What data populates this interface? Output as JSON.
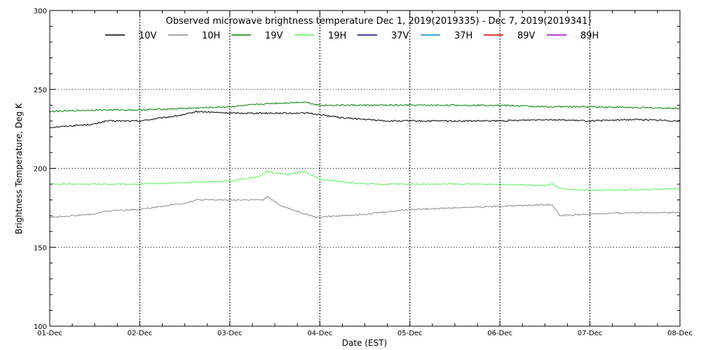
{
  "chart_data": {
    "type": "line",
    "title": "Observed microwave brightness temperature Dec  1, 2019(2019335) - Dec  7, 2019(2019341)",
    "xlabel": "Date (EST)",
    "ylabel": "Brightness Temperature, Deg K",
    "xlim": [
      "01-Dec",
      "08-Dec"
    ],
    "ylim": [
      100,
      300
    ],
    "x_ticks": [
      "01-Dec",
      "02-Dec",
      "03-Dec",
      "04-Dec",
      "05-Dec",
      "06-Dec",
      "07-Dec",
      "08-Dec"
    ],
    "y_ticks": [
      100,
      150,
      200,
      250,
      300
    ],
    "grid": true,
    "legend_position": "top",
    "legend": [
      {
        "name": "10V",
        "color": "#000000"
      },
      {
        "name": "10H",
        "color": "#8c8c8c"
      },
      {
        "name": "19V",
        "color": "#008000"
      },
      {
        "name": "19H",
        "color": "#5cf05c"
      },
      {
        "name": "37V",
        "color": "#000080"
      },
      {
        "name": "37H",
        "color": "#0088c8"
      },
      {
        "name": "89V",
        "color": "#d00000"
      },
      {
        "name": "89H",
        "color": "#a000c0"
      }
    ],
    "series": [
      {
        "name": "10V",
        "color": "#000000",
        "x": [
          "01-Dec",
          "01-Dec 12:00",
          "01-Dec 15:00",
          "02-Dec",
          "02-Dec 12:00",
          "02-Dec 15:00",
          "03-Dec",
          "03-Dec 12:00",
          "03-Dec 21:00",
          "04-Dec 06:00",
          "04-Dec 18:00",
          "05-Dec",
          "05-Dec 12:00",
          "06-Dec",
          "06-Dec 12:00",
          "07-Dec",
          "07-Dec 12:00",
          "08-Dec"
        ],
        "y": [
          226,
          228,
          230,
          230,
          234,
          236,
          235,
          235,
          235,
          232,
          230,
          230,
          230,
          230,
          231,
          230,
          231,
          230
        ]
      },
      {
        "name": "10H",
        "color": "#8c8c8c",
        "x": [
          "01-Dec",
          "01-Dec 12:00",
          "01-Dec 15:00",
          "02-Dec",
          "02-Dec 12:00",
          "02-Dec 15:00",
          "03-Dec",
          "03-Dec 09:00",
          "03-Dec 10:00",
          "03-Dec 14:00",
          "03-Dec 19:00",
          "03-Dec 23:00",
          "04-Dec 12:00",
          "05-Dec",
          "05-Dec 12:00",
          "06-Dec",
          "06-Dec 12:00",
          "06-Dec 14:00",
          "06-Dec 16:00",
          "07-Dec",
          "07-Dec 12:00",
          "08-Dec"
        ],
        "y": [
          169,
          171,
          173,
          174,
          178,
          180,
          180,
          180,
          182,
          176,
          172,
          169,
          171,
          174,
          175,
          176,
          177,
          177,
          170,
          171,
          172,
          172
        ]
      },
      {
        "name": "19V",
        "color": "#008000",
        "x": [
          "01-Dec",
          "01-Dec 12:00",
          "02-Dec",
          "02-Dec 12:00",
          "03-Dec",
          "03-Dec 10:00",
          "03-Dec 20:00",
          "04-Dec",
          "05-Dec",
          "06-Dec",
          "06-Dec 12:00",
          "07-Dec",
          "08-Dec"
        ],
        "y": [
          236,
          237,
          237,
          238,
          239,
          241,
          242,
          240,
          240,
          240,
          239,
          239,
          238
        ]
      },
      {
        "name": "19H",
        "color": "#5cf05c",
        "x": [
          "01-Dec",
          "01-Dec 12:00",
          "02-Dec",
          "02-Dec 12:00",
          "03-Dec",
          "03-Dec 08:00",
          "03-Dec 10:00",
          "03-Dec 15:00",
          "03-Dec 20:00",
          "04-Dec",
          "04-Dec 12:00",
          "05-Dec",
          "05-Dec 12:00",
          "06-Dec",
          "06-Dec 12:00",
          "06-Dec 14:00",
          "06-Dec 16:00",
          "07-Dec",
          "08-Dec"
        ],
        "y": [
          190,
          190,
          190,
          191,
          192,
          195,
          198,
          196,
          198,
          193,
          190,
          190,
          190,
          190,
          189,
          190,
          187,
          186,
          187
        ]
      },
      {
        "name": "37V",
        "color": "#000080",
        "x": [],
        "y": []
      },
      {
        "name": "37H",
        "color": "#0088c8",
        "x": [],
        "y": []
      },
      {
        "name": "89V",
        "color": "#d00000",
        "x": [],
        "y": []
      },
      {
        "name": "89H",
        "color": "#a000c0",
        "x": [],
        "y": []
      }
    ]
  }
}
